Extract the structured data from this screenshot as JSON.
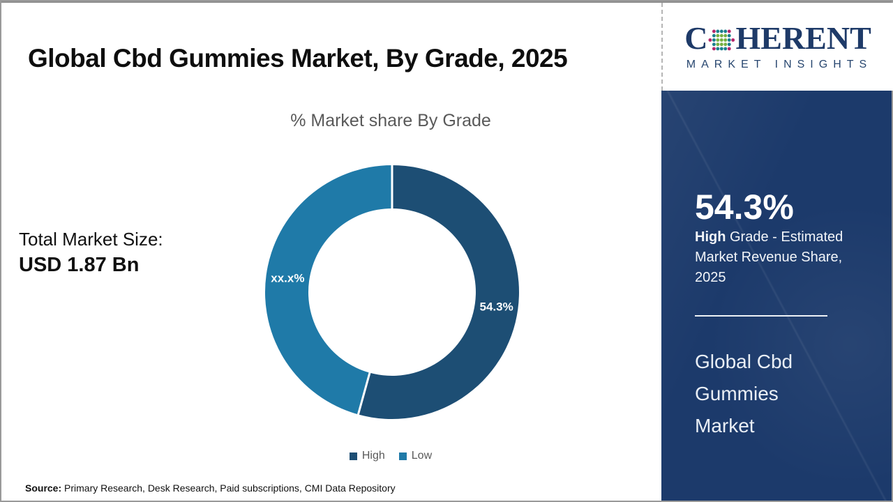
{
  "header": {
    "title": "Global Cbd Gummies Market, By Grade, 2025"
  },
  "logo": {
    "text_c": "C",
    "text_rest": "HERENT",
    "subtitle": "MARKET INSIGHTS",
    "navy": "#1e3a68",
    "dot_green": "#76b043",
    "dot_teal": "#1b7f8e",
    "dot_magenta": "#b5256b"
  },
  "chart_data": {
    "type": "pie",
    "donut": true,
    "title": "% Market share By Grade",
    "legend_position": "bottom",
    "start_angle_deg": 0,
    "series": [
      {
        "name": "High",
        "value": 54.3,
        "label": "54.3%",
        "color": "#1d4e74"
      },
      {
        "name": "Low",
        "value": 45.7,
        "label": "xx.x%",
        "color": "#1f7aa8"
      }
    ]
  },
  "left_panel": {
    "label": "Total Market Size:",
    "value": "USD 1.87 Bn"
  },
  "sidebar": {
    "background": "#1c3a6b",
    "stat_value": "54.3%",
    "stat_desc_bold": "High",
    "stat_desc_rest": " Grade - Estimated Market Revenue Share, 2025",
    "market_title": "Global Cbd Gummies Market"
  },
  "footer": {
    "source_label": "Source:",
    "source_text": " Primary Research, Desk Research, Paid subscriptions, CMI Data Repository"
  }
}
